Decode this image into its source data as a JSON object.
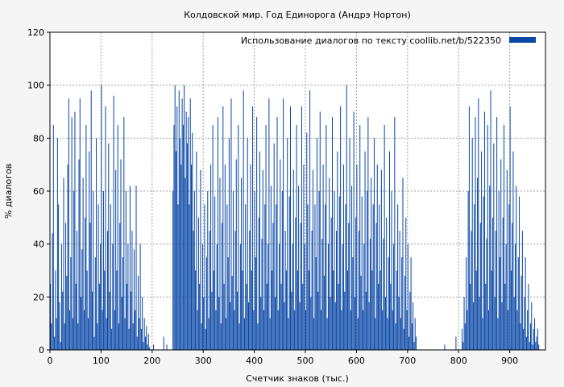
{
  "chart_data": {
    "type": "bar",
    "title": "Колдовской мир. Год Единорога (Андрэ Нортон)",
    "xlabel": "Счетчик знаков (тыс.)",
    "ylabel": "% диалогов",
    "legend": {
      "label": "Использование диалогов по тексту  coollib.net/b/522350",
      "position": "top-right",
      "color": "#0a47a6"
    },
    "xlim": [
      0,
      970
    ],
    "ylim": [
      0,
      120
    ],
    "xticks": [
      0,
      100,
      200,
      300,
      400,
      500,
      600,
      700,
      800,
      900
    ],
    "yticks": [
      0,
      20,
      40,
      60,
      80,
      100,
      120
    ],
    "grid": true,
    "bar_color": "#0a47a6",
    "x_step": 2,
    "series": [
      {
        "x_start": 0,
        "values": [
          25,
          10,
          44,
          85,
          5,
          30,
          12,
          80,
          55,
          18,
          3,
          40,
          22,
          65,
          10,
          48,
          28,
          70,
          95,
          15,
          35,
          88,
          12,
          60,
          90,
          25,
          45,
          10,
          72,
          95,
          20,
          38,
          65,
          15,
          50,
          85,
          30,
          12,
          75,
          48,
          98,
          22,
          60,
          5,
          35,
          80,
          10,
          55,
          25,
          40,
          100,
          15,
          60,
          30,
          92,
          12,
          45,
          78,
          22,
          55,
          8,
          40,
          96,
          15,
          68,
          30,
          85,
          10,
          48,
          72,
          20,
          35,
          88,
          12,
          60,
          25,
          40,
          8,
          62,
          22,
          45,
          10,
          38,
          15,
          62,
          5,
          28,
          12,
          40,
          8,
          20,
          3,
          12,
          5,
          9,
          2,
          6,
          1,
          0,
          0,
          0,
          2,
          0,
          0,
          0,
          0,
          0,
          0,
          0,
          0,
          0,
          5,
          0,
          0,
          2,
          0,
          0,
          0,
          0,
          0,
          60,
          85,
          100,
          75,
          92,
          55,
          98,
          80,
          70,
          95,
          85,
          100,
          65,
          90,
          78,
          88,
          55,
          95,
          70,
          82,
          45,
          60,
          30,
          75,
          15,
          50,
          25,
          68,
          10,
          40,
          20,
          55,
          8,
          35,
          60,
          12,
          45,
          70,
          22,
          85,
          30,
          58,
          15,
          40,
          88,
          20,
          65,
          10,
          48,
          92,
          25,
          70,
          12,
          55,
          35,
          80,
          18,
          95,
          28,
          60,
          15,
          45,
          72,
          22,
          85,
          10,
          40,
          65,
          30,
          98,
          12,
          55,
          25,
          80,
          18,
          45,
          70,
          30,
          92,
          15,
          60,
          35,
          88,
          10,
          50,
          75,
          20,
          42,
          68,
          15,
          55,
          85,
          25,
          40,
          95,
          12,
          62,
          30,
          48,
          78,
          20,
          55,
          88,
          15,
          40,
          72,
          25,
          60,
          95,
          18,
          45,
          30,
          80,
          12,
          58,
          92,
          22,
          40,
          68,
          15,
          50,
          85,
          30,
          62,
          18,
          48,
          92,
          25,
          70,
          40,
          15,
          82,
          55,
          30,
          98,
          20,
          45,
          68,
          12,
          55,
          35,
          80,
          22,
          60,
          90,
          15,
          42,
          70,
          28,
          55,
          85,
          12,
          40,
          65,
          20,
          50,
          88,
          30,
          60,
          18,
          45,
          75,
          25,
          58,
          92,
          15,
          40,
          70,
          22,
          55,
          100,
          30,
          48,
          80,
          15,
          62,
          35,
          90,
          20,
          50,
          70,
          12,
          45,
          85,
          28,
          58,
          15,
          40,
          75,
          22,
          60,
          88,
          18,
          42,
          65,
          30,
          55,
          80,
          12,
          48,
          70,
          25,
          55,
          30,
          68,
          15,
          42,
          85,
          20,
          50,
          12,
          35,
          75,
          25,
          60,
          15,
          40,
          88,
          10,
          30,
          55,
          20,
          45,
          12,
          35,
          65,
          8,
          28,
          50,
          15,
          40,
          5,
          22,
          35,
          10,
          18,
          3,
          12,
          5,
          0,
          0,
          0,
          0,
          0,
          0,
          0,
          0,
          0,
          0,
          0,
          0,
          0,
          0,
          0,
          0,
          0,
          0,
          0,
          0,
          0,
          0,
          0,
          0,
          0,
          0,
          0,
          2,
          0,
          0,
          0,
          0,
          0,
          0,
          0,
          0,
          0,
          0,
          5,
          0,
          0,
          0,
          0,
          0,
          8,
          3,
          20,
          10,
          35,
          15,
          60,
          92,
          25,
          45,
          80,
          18,
          55,
          88,
          30,
          65,
          95,
          20,
          48,
          75,
          12,
          58,
          90,
          25,
          42,
          85,
          15,
          62,
          98,
          30,
          50,
          78,
          20,
          45,
          88,
          12,
          60,
          35,
          72,
          18,
          50,
          85,
          25,
          40,
          68,
          15,
          55,
          92,
          30,
          48,
          75,
          20,
          40,
          62,
          15,
          35,
          58,
          10,
          28,
          45,
          8,
          20,
          35,
          5,
          15,
          25,
          3,
          10,
          18,
          2,
          8,
          12,
          3,
          5,
          8,
          2,
          0
        ]
      }
    ]
  }
}
